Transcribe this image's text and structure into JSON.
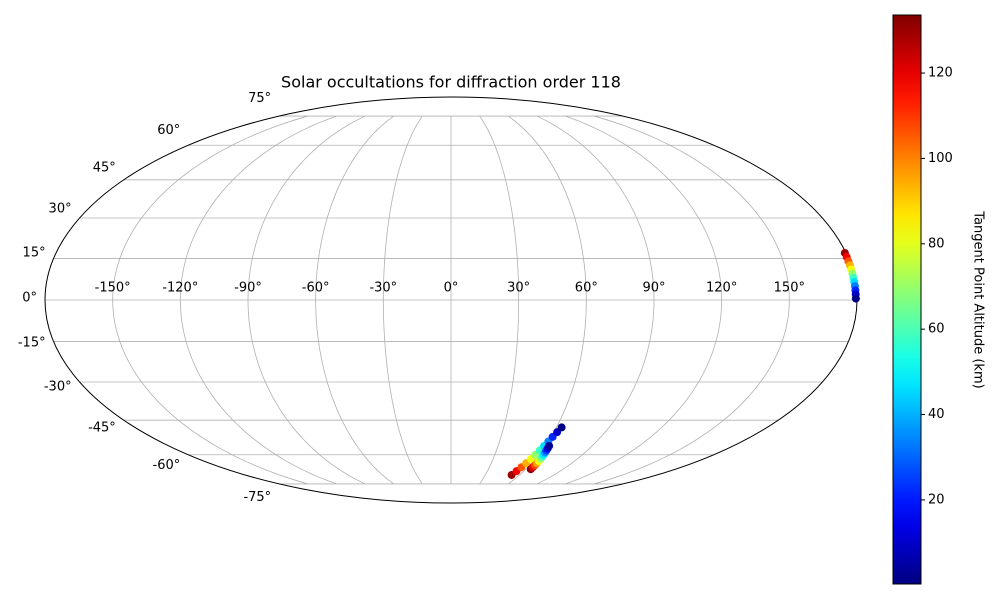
{
  "chart_data": {
    "type": "scatter",
    "projection": "mollweide",
    "title": "Solar occultations for diffraction order 118",
    "colorbar_label": "Tangent Point Altitude (km)",
    "colormap": "jet",
    "clim": [
      0.3,
      133.6
    ],
    "cticks": [
      20,
      40,
      60,
      80,
      100,
      120
    ],
    "xticks": [
      {
        "value": -150,
        "label": "-150°"
      },
      {
        "value": -120,
        "label": "-120°"
      },
      {
        "value": -90,
        "label": "-90°"
      },
      {
        "value": -60,
        "label": "-60°"
      },
      {
        "value": -30,
        "label": "-30°"
      },
      {
        "value": 0,
        "label": "0°"
      },
      {
        "value": 30,
        "label": "30°"
      },
      {
        "value": 60,
        "label": "60°"
      },
      {
        "value": 90,
        "label": "90°"
      },
      {
        "value": 120,
        "label": "120°"
      },
      {
        "value": 150,
        "label": "150°"
      }
    ],
    "yticks": [
      {
        "value": -75,
        "label": "-75°"
      },
      {
        "value": -60,
        "label": "-60°"
      },
      {
        "value": -45,
        "label": "-45°"
      },
      {
        "value": -30,
        "label": "-30°"
      },
      {
        "value": -15,
        "label": "-15°"
      },
      {
        "value": 0,
        "label": "0°"
      },
      {
        "value": 15,
        "label": "15°"
      },
      {
        "value": 30,
        "label": "30°"
      },
      {
        "value": 45,
        "label": "45°"
      },
      {
        "value": 60,
        "label": "60°"
      },
      {
        "value": 75,
        "label": "75°"
      }
    ],
    "grid": true,
    "lon": [
      53,
      54,
      55,
      56,
      57,
      57.8,
      58.6,
      59.4,
      60.2,
      61,
      62,
      63,
      64,
      64,
      64,
      64,
      64,
      63.8,
      63.6,
      63.4,
      63.2,
      63,
      62.8,
      62.6,
      179.5,
      179.5,
      179.5,
      179.5,
      179.5,
      179.5,
      179.5,
      179.5,
      179.5,
      179.5,
      179.5,
      179.5
    ],
    "lat": [
      -70,
      -68,
      -66,
      -64,
      -62,
      -60,
      -58,
      -56,
      -54,
      -52,
      -50,
      -48,
      -67,
      -66,
      -65,
      -64,
      -63,
      -62,
      -61,
      -60,
      -59,
      -58,
      -57,
      -56,
      17,
      15.5,
      14,
      12.5,
      11,
      9.5,
      8,
      6.5,
      5,
      3.5,
      2,
      0.5
    ],
    "alt": [
      130,
      118,
      106,
      94,
      82,
      70,
      58,
      46,
      34,
      22,
      10,
      1,
      132,
      120,
      108,
      96,
      84,
      72,
      60,
      48,
      36,
      24,
      12,
      3,
      130,
      118,
      106,
      94,
      82,
      70,
      58,
      46,
      34,
      22,
      10,
      1
    ]
  }
}
